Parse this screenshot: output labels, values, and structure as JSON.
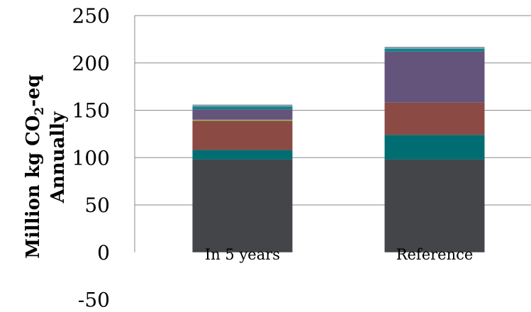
{
  "chart_data": {
    "type": "bar",
    "stacked": true,
    "categories": [
      "In 5 years",
      "Reference"
    ],
    "series": [
      {
        "color": "#434549",
        "values": [
          98,
          98
        ]
      },
      {
        "color": "#006d72",
        "values": [
          10,
          26
        ]
      },
      {
        "color": "#8b4a44",
        "values": [
          31,
          34
        ]
      },
      {
        "color": "#9bbb59",
        "values": [
          1,
          0
        ]
      },
      {
        "color": "#64537a",
        "values": [
          11,
          54
        ]
      },
      {
        "color": "#1b7f82",
        "values": [
          3,
          3
        ]
      },
      {
        "color": "#4bacc6",
        "values": [
          1,
          1
        ]
      },
      {
        "color": "#8f8fa0",
        "values": [
          1,
          1
        ]
      }
    ],
    "ylabel_line1": "Million kg CO",
    "ylabel_sub": "2",
    "ylabel_suffix": "-eq",
    "ylabel_line2": "Annually",
    "yticks": [
      "250",
      "200",
      "150",
      "100",
      "50",
      "0",
      "-50"
    ],
    "ylim": [
      -50,
      250
    ],
    "grid": true,
    "legend": "none"
  }
}
